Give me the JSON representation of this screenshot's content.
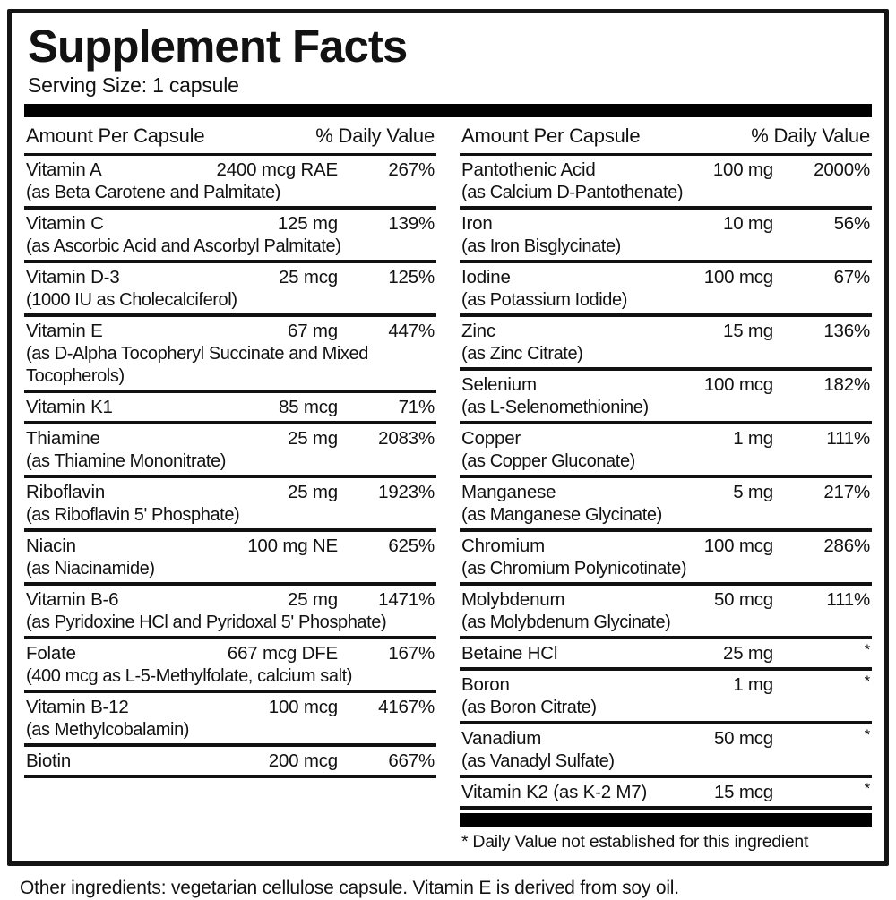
{
  "label": {
    "title": "Supplement Facts",
    "serving_size": "Serving Size: 1 capsule",
    "column_header": {
      "amount": "Amount Per Capsule",
      "daily_value": "% Daily Value"
    },
    "footnote": "* Daily Value not established for this ingredient",
    "other_ingredients": "Other ingredients: vegetarian cellulose capsule. Vitamin E is derived from soy oil."
  },
  "columns": {
    "left": [
      {
        "name": "Vitamin A",
        "amount": "2400 mcg RAE",
        "dv": "267%",
        "detail": "(as Beta Carotene and Palmitate)"
      },
      {
        "name": "Vitamin C",
        "amount": "125 mg",
        "dv": "139%",
        "detail": "(as Ascorbic Acid and Ascorbyl Palmitate)"
      },
      {
        "name": "Vitamin D-3",
        "amount": "25 mcg",
        "dv": "125%",
        "detail": "(1000 IU as Cholecalciferol)"
      },
      {
        "name": "Vitamin E",
        "amount": "67 mg",
        "dv": "447%",
        "detail": "(as D-Alpha Tocopheryl Succinate and Mixed Tocopherols)"
      },
      {
        "name": "Vitamin K1",
        "amount": "85 mcg",
        "dv": "71%",
        "detail": ""
      },
      {
        "name": "Thiamine",
        "amount": "25 mg",
        "dv": "2083%",
        "detail": "(as Thiamine Mononitrate)"
      },
      {
        "name": "Riboflavin",
        "amount": "25 mg",
        "dv": "1923%",
        "detail": "(as Riboflavin 5' Phosphate)"
      },
      {
        "name": "Niacin",
        "amount": "100 mg NE",
        "dv": "625%",
        "detail": "(as Niacinamide)"
      },
      {
        "name": "Vitamin B-6",
        "amount": "25 mg",
        "dv": "1471%",
        "detail": "(as Pyridoxine HCl and Pyridoxal 5' Phosphate)"
      },
      {
        "name": "Folate",
        "amount": "667 mcg DFE",
        "dv": "167%",
        "detail": "(400 mcg as L-5-Methylfolate, calcium salt)"
      },
      {
        "name": "Vitamin B-12",
        "amount": "100 mcg",
        "dv": "4167%",
        "detail": "(as Methylcobalamin)"
      },
      {
        "name": "Biotin",
        "amount": "200 mcg",
        "dv": "667%",
        "detail": ""
      }
    ],
    "right": [
      {
        "name": "Pantothenic Acid",
        "amount": "100 mg",
        "dv": "2000%",
        "detail": "(as Calcium D-Pantothenate)"
      },
      {
        "name": "Iron",
        "amount": "10 mg",
        "dv": "56%",
        "detail": "(as Iron Bisglycinate)"
      },
      {
        "name": "Iodine",
        "amount": "100 mcg",
        "dv": "67%",
        "detail": "(as Potassium Iodide)"
      },
      {
        "name": "Zinc",
        "amount": "15 mg",
        "dv": "136%",
        "detail": "(as Zinc Citrate)"
      },
      {
        "name": "Selenium",
        "amount": "100 mcg",
        "dv": "182%",
        "detail": "(as L-Selenomethionine)"
      },
      {
        "name": "Copper",
        "amount": "1 mg",
        "dv": "111%",
        "detail": "(as Copper Gluconate)"
      },
      {
        "name": "Manganese",
        "amount": "5 mg",
        "dv": "217%",
        "detail": "(as Manganese Glycinate)"
      },
      {
        "name": "Chromium",
        "amount": "100 mcg",
        "dv": "286%",
        "detail": "(as Chromium Polynicotinate)"
      },
      {
        "name": "Molybdenum",
        "amount": "50 mcg",
        "dv": "111%",
        "detail": "(as Molybdenum Glycinate)"
      },
      {
        "name": "Betaine HCl",
        "amount": "25 mg",
        "dv": "*",
        "detail": ""
      },
      {
        "name": "Boron",
        "amount": "1 mg",
        "dv": "*",
        "detail": "(as Boron Citrate)"
      },
      {
        "name": "Vanadium",
        "amount": "50 mcg",
        "dv": "*",
        "detail": "(as Vanadyl Sulfate)"
      },
      {
        "name": "Vitamin K2 (as K-2 M7)",
        "amount": "15 mcg",
        "dv": "*",
        "detail": ""
      }
    ]
  },
  "colors": {
    "text": "#121212",
    "bar": "#000000",
    "border": "#151515",
    "background": "#ffffff"
  }
}
